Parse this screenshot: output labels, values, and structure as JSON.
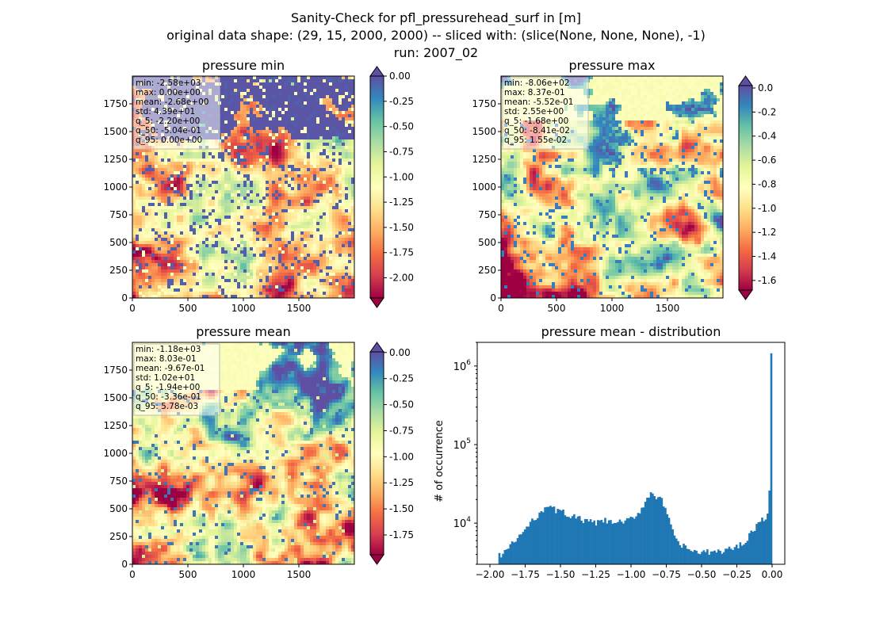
{
  "figure": {
    "title_line1": "Sanity-Check for pfl_pressurehead_surf in [m]",
    "title_line2": "original data shape: (29, 15, 2000, 2000) -- sliced with: (slice(None, None, None), -1)",
    "title_line3": "run: 2007_02"
  },
  "colors": {
    "spectral": [
      "#9e0142",
      "#d53e4f",
      "#f46d43",
      "#fdae61",
      "#fee08b",
      "#ffffbf",
      "#e6f598",
      "#abdda4",
      "#66c2a5",
      "#3288bd",
      "#5e4fa2"
    ],
    "histogram_bar": "#1f77b4"
  },
  "chart_data": [
    {
      "type": "heatmap",
      "title": "pressure min",
      "colormap": "Spectral",
      "xlim": [
        0,
        2000
      ],
      "ylim": [
        0,
        2000
      ],
      "x_ticks": [
        "0",
        "500",
        "1000",
        "1500"
      ],
      "y_ticks": [
        "0",
        "250",
        "500",
        "750",
        "1000",
        "1250",
        "1500",
        "1750"
      ],
      "colorbar": {
        "range": [
          -2.2,
          0.0
        ],
        "extend": "both",
        "ticks": [
          "0.00",
          "-0.25",
          "-0.50",
          "-0.75",
          "-1.00",
          "-1.25",
          "-1.50",
          "-1.75",
          "-2.00"
        ]
      },
      "stats": [
        "min: -2.58e+03",
        "max: 0.00e+00",
        "mean: -2.68e+00",
        "std: 4.39e+01",
        "q_5: -2.20e+00",
        "q_50: -5.04e-01",
        "q_95: 0.00e+00"
      ]
    },
    {
      "type": "heatmap",
      "title": "pressure max",
      "colormap": "Spectral",
      "xlim": [
        0,
        2000
      ],
      "ylim": [
        0,
        2000
      ],
      "x_ticks": [
        "0",
        "500",
        "1000",
        "1500"
      ],
      "y_ticks": [
        "0",
        "250",
        "500",
        "750",
        "1000",
        "1250",
        "1500",
        "1750"
      ],
      "colorbar": {
        "range": [
          -1.68,
          0.02
        ],
        "extend": "both",
        "ticks": [
          "0.0",
          "-0.2",
          "-0.4",
          "-0.6",
          "-0.8",
          "-1.0",
          "-1.2",
          "-1.4",
          "-1.6"
        ]
      },
      "stats": [
        "min: -8.06e+02",
        "max: 8.37e-01",
        "mean: -5.52e-01",
        "std: 2.55e+00",
        "q_5: -1.68e+00",
        "q_50: -8.41e-02",
        "q_95: 1.55e-02"
      ]
    },
    {
      "type": "heatmap",
      "title": "pressure mean",
      "colormap": "Spectral",
      "xlim": [
        0,
        2000
      ],
      "ylim": [
        0,
        2000
      ],
      "x_ticks": [
        "0",
        "500",
        "1000",
        "1500"
      ],
      "y_ticks": [
        "0",
        "250",
        "500",
        "750",
        "1000",
        "1250",
        "1500",
        "1750"
      ],
      "colorbar": {
        "range": [
          -1.94,
          0.006
        ],
        "extend": "both",
        "ticks": [
          "0.00",
          "-0.25",
          "-0.50",
          "-0.75",
          "-1.00",
          "-1.25",
          "-1.50",
          "-1.75"
        ]
      },
      "stats": [
        "min: -1.18e+03",
        "max: 8.03e-01",
        "mean: -9.67e-01",
        "std: 1.02e+01",
        "q_5: -1.94e+00",
        "q_50: -3.36e-01",
        "q_95: 5.78e-03"
      ]
    },
    {
      "type": "bar",
      "title": "pressure mean - distribution",
      "xlabel": "",
      "ylabel": "# of occurrence",
      "yscale": "log",
      "xlim": [
        -2.09,
        0.09
      ],
      "ylim": [
        3000,
        2000000
      ],
      "x_ticks": [
        "-2.00",
        "-1.75",
        "-1.50",
        "-1.25",
        "-1.00",
        "-0.75",
        "-0.50",
        "-0.25",
        "0.00"
      ],
      "y_ticks": [
        "10^4",
        "10^5",
        "10^6"
      ],
      "bin_range": [
        -1.94,
        0.0
      ],
      "bin_count": 150,
      "profile_x": [
        -1.94,
        -1.9,
        -1.85,
        -1.8,
        -1.75,
        -1.7,
        -1.65,
        -1.62,
        -1.6,
        -1.58,
        -1.55,
        -1.5,
        -1.45,
        -1.4,
        -1.35,
        -1.3,
        -1.25,
        -1.2,
        -1.15,
        -1.1,
        -1.05,
        -1.0,
        -0.95,
        -0.9,
        -0.88,
        -0.86,
        -0.84,
        -0.82,
        -0.8,
        -0.78,
        -0.75,
        -0.72,
        -0.7,
        -0.65,
        -0.6,
        -0.55,
        -0.52,
        -0.5,
        -0.45,
        -0.4,
        -0.35,
        -0.3,
        -0.25,
        -0.2,
        -0.15,
        -0.1,
        -0.05,
        -0.03,
        -0.015,
        -0.007,
        0.0
      ],
      "profile_y": [
        3800,
        4300,
        5200,
        6600,
        8300,
        10500,
        13500,
        15500,
        16800,
        15800,
        15000,
        14200,
        13000,
        12000,
        11000,
        10400,
        10000,
        10800,
        10300,
        10200,
        10300,
        11200,
        13500,
        18000,
        22000,
        25000,
        24000,
        21500,
        21000,
        19000,
        14000,
        9200,
        7200,
        5300,
        4700,
        4400,
        4200,
        4200,
        4250,
        4300,
        4500,
        4700,
        5000,
        5800,
        7500,
        9800,
        11500,
        12500,
        14000,
        25000,
        1450000
      ]
    }
  ]
}
